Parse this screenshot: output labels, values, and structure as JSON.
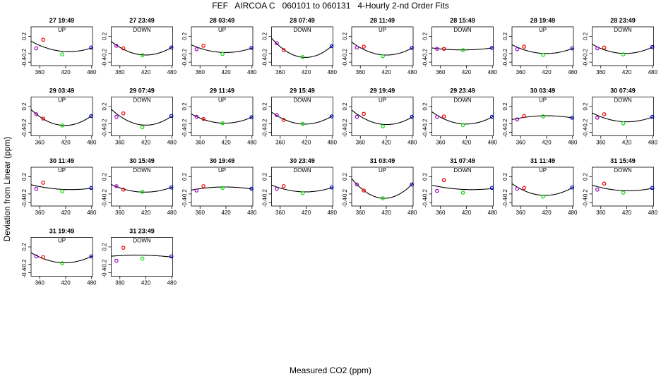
{
  "figure": {
    "title": "FEF   AIRCOA C   060101 to 060131   4-Hourly 2-nd Order Fits",
    "xlabel": "Measured CO2 (ppm)",
    "ylabel": "Deviation from Linear (ppm)"
  },
  "colors": {
    "standard_1": "#9900cc",
    "standard_2": "#ee0000",
    "standard_3": "#00dd00",
    "standard_4": "#0000cc",
    "fit": "#000000"
  },
  "chart_data": {
    "type": "scatter",
    "panel_count": 26,
    "x_ticks": [
      360,
      420,
      480
    ],
    "y_ticks": [
      -0.4,
      -0.2,
      0.2
    ],
    "y_tick_labels": [
      "-0.4",
      "-0.2",
      "0.2"
    ],
    "xlim": [
      340,
      482
    ],
    "ylim": [
      -0.48,
      0.42
    ],
    "standards_x": [
      352,
      368,
      412,
      479
    ],
    "panels": [
      {
        "title": "27 19:49",
        "dir": "UP",
        "y": [
          -0.08,
          0.12,
          -0.22,
          -0.06
        ]
      },
      {
        "title": "27 23:49",
        "dir": "DOWN",
        "y": [
          -0.02,
          -0.08,
          -0.24,
          -0.06
        ]
      },
      {
        "title": "28 03:49",
        "dir": "UP",
        "y": [
          -0.1,
          -0.02,
          -0.21,
          -0.07
        ]
      },
      {
        "title": "28 07:49",
        "dir": "DOWN",
        "y": [
          0.04,
          -0.12,
          -0.28,
          -0.03
        ]
      },
      {
        "title": "28 11:49",
        "dir": "UP",
        "y": [
          -0.06,
          -0.04,
          -0.26,
          -0.07
        ]
      },
      {
        "title": "28 15:49",
        "dir": "DOWN",
        "y": [
          -0.09,
          -0.09,
          -0.12,
          -0.07
        ]
      },
      {
        "title": "28 19:49",
        "dir": "UP",
        "y": [
          -0.1,
          -0.04,
          -0.23,
          -0.08
        ]
      },
      {
        "title": "28 23:49",
        "dir": "DOWN",
        "y": [
          -0.08,
          -0.06,
          -0.22,
          -0.05
        ]
      },
      {
        "title": "29 03:49",
        "dir": "UP",
        "y": [
          0.02,
          -0.08,
          -0.24,
          -0.02
        ]
      },
      {
        "title": "29 07:49",
        "dir": "DOWN",
        "y": [
          -0.04,
          0.04,
          -0.28,
          -0.02
        ]
      },
      {
        "title": "29 11:49",
        "dir": "UP",
        "y": [
          -0.04,
          -0.09,
          -0.19,
          -0.05
        ]
      },
      {
        "title": "29 15:49",
        "dir": "DOWN",
        "y": [
          0.0,
          -0.11,
          -0.2,
          -0.03
        ]
      },
      {
        "title": "29 19:49",
        "dir": "UP",
        "y": [
          -0.04,
          0.03,
          -0.26,
          -0.04
        ]
      },
      {
        "title": "29 23:49",
        "dir": "DOWN",
        "y": [
          -0.04,
          -0.03,
          -0.23,
          -0.04
        ]
      },
      {
        "title": "30 03:49",
        "dir": "UP",
        "y": [
          -0.1,
          -0.02,
          -0.03,
          -0.06
        ]
      },
      {
        "title": "30 07:49",
        "dir": "DOWN",
        "y": [
          -0.06,
          0.02,
          -0.19,
          -0.04
        ]
      },
      {
        "title": "30 11:49",
        "dir": "UP",
        "y": [
          -0.08,
          0.06,
          -0.14,
          -0.06
        ]
      },
      {
        "title": "30 15:49",
        "dir": "DOWN",
        "y": [
          -0.02,
          -0.1,
          -0.15,
          -0.05
        ]
      },
      {
        "title": "30 19:49",
        "dir": "UP",
        "y": [
          -0.12,
          -0.02,
          -0.06,
          -0.08
        ]
      },
      {
        "title": "30 23:49",
        "dir": "DOWN",
        "y": [
          -0.08,
          -0.02,
          -0.18,
          -0.05
        ]
      },
      {
        "title": "31 03:49",
        "dir": "UP",
        "y": [
          0.02,
          -0.12,
          -0.3,
          0.02
        ]
      },
      {
        "title": "31 07:49",
        "dir": "DOWN",
        "y": [
          -0.13,
          0.12,
          -0.17,
          -0.06
        ]
      },
      {
        "title": "31 11:49",
        "dir": "UP",
        "y": [
          -0.08,
          -0.06,
          -0.26,
          -0.05
        ]
      },
      {
        "title": "31 15:49",
        "dir": "DOWN",
        "y": [
          -0.1,
          0.04,
          -0.17,
          -0.06
        ]
      },
      {
        "title": "31 19:49",
        "dir": "UP",
        "y": [
          -0.02,
          -0.04,
          -0.18,
          -0.02
        ]
      },
      {
        "title": "31 23:49",
        "dir": "DOWN",
        "y": [
          -0.12,
          0.18,
          -0.07,
          -0.02
        ]
      }
    ]
  }
}
